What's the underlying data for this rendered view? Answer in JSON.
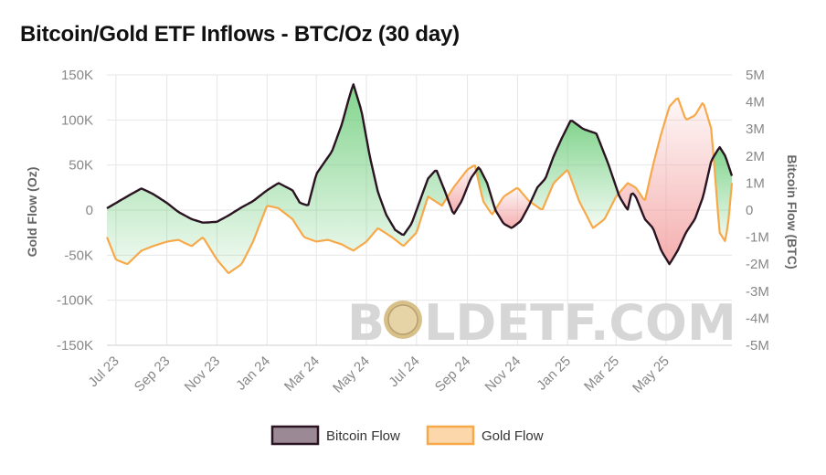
{
  "title": "Bitcoin/Gold ETF Inflows - BTC/Oz (30 day)",
  "watermark": {
    "left": "B",
    "right": "LDETF.COM"
  },
  "colors": {
    "bitcoin": "#2a1422",
    "bitcoin_fill": "#9b8a96",
    "gold": "#f7a94a",
    "gold_fill": "#fcd7ab",
    "pos_area": "#6ccc79",
    "neg_area": "#f29a9a",
    "grid": "#e6e6e6",
    "text": "#888888"
  },
  "chart_data": {
    "type": "line",
    "title": "Bitcoin/Gold ETF Inflows - BTC/Oz (30 day)",
    "x_start": "2023-06-20",
    "x_end": "2025-07-20",
    "x_ticks": [
      "Jul 23",
      "Sep 23",
      "Nov 23",
      "Jan 24",
      "Mar 24",
      "May 24",
      "Jul 24",
      "Sep 24",
      "Nov 24",
      "Jan 25",
      "Mar 25",
      "May 25"
    ],
    "x_tick_dates": [
      "2023-07-01",
      "2023-09-01",
      "2023-11-01",
      "2024-01-01",
      "2024-03-01",
      "2024-05-01",
      "2024-07-01",
      "2024-09-01",
      "2024-11-01",
      "2025-01-01",
      "2025-03-01",
      "2025-05-01"
    ],
    "y_left_label": "Gold Flow (Oz)",
    "y_left_lim": [
      -150000,
      150000
    ],
    "y_left_ticks": [
      "150K",
      "100K",
      "50K",
      "0",
      "-50K",
      "-100K",
      "-150K"
    ],
    "y_right_label": "Bitcoin Flow (BTC)",
    "y_right_lim": [
      -5000000,
      5000000
    ],
    "y_right_ticks": [
      "5M",
      "4M",
      "3M",
      "2M",
      "1M",
      "0",
      "-1M",
      "-2M",
      "-3M",
      "-4M",
      "-5M"
    ],
    "legend": [
      "Bitcoin Flow",
      "Gold Flow"
    ],
    "series": [
      {
        "name": "Bitcoin Flow",
        "axis": "left",
        "points": [
          [
            "2023-06-20",
            2000
          ],
          [
            "2023-07-05",
            10000
          ],
          [
            "2023-07-20",
            18000
          ],
          [
            "2023-08-01",
            24000
          ],
          [
            "2023-08-15",
            18000
          ],
          [
            "2023-09-01",
            8000
          ],
          [
            "2023-09-15",
            -2000
          ],
          [
            "2023-10-01",
            -10000
          ],
          [
            "2023-10-15",
            -14000
          ],
          [
            "2023-11-01",
            -13000
          ],
          [
            "2023-11-15",
            -6000
          ],
          [
            "2023-12-01",
            3000
          ],
          [
            "2023-12-15",
            10000
          ],
          [
            "2024-01-01",
            22000
          ],
          [
            "2024-01-15",
            30000
          ],
          [
            "2024-02-01",
            22000
          ],
          [
            "2024-02-10",
            8000
          ],
          [
            "2024-02-20",
            5000
          ],
          [
            "2024-03-01",
            40000
          ],
          [
            "2024-03-10",
            52000
          ],
          [
            "2024-03-20",
            65000
          ],
          [
            "2024-04-01",
            95000
          ],
          [
            "2024-04-10",
            125000
          ],
          [
            "2024-04-15",
            140000
          ],
          [
            "2024-04-25",
            110000
          ],
          [
            "2024-05-05",
            60000
          ],
          [
            "2024-05-15",
            20000
          ],
          [
            "2024-05-25",
            -5000
          ],
          [
            "2024-06-05",
            -22000
          ],
          [
            "2024-06-15",
            -28000
          ],
          [
            "2024-06-25",
            -15000
          ],
          [
            "2024-07-05",
            10000
          ],
          [
            "2024-07-15",
            35000
          ],
          [
            "2024-07-25",
            45000
          ],
          [
            "2024-08-05",
            20000
          ],
          [
            "2024-08-15",
            -5000
          ],
          [
            "2024-08-25",
            10000
          ],
          [
            "2024-09-05",
            35000
          ],
          [
            "2024-09-15",
            48000
          ],
          [
            "2024-09-25",
            30000
          ],
          [
            "2024-10-05",
            0
          ],
          [
            "2024-10-15",
            -15000
          ],
          [
            "2024-10-25",
            -20000
          ],
          [
            "2024-11-05",
            -12000
          ],
          [
            "2024-11-15",
            5000
          ],
          [
            "2024-11-25",
            25000
          ],
          [
            "2024-12-05",
            35000
          ],
          [
            "2024-12-15",
            60000
          ],
          [
            "2024-12-25",
            80000
          ],
          [
            "2025-01-05",
            100000
          ],
          [
            "2025-01-20",
            90000
          ],
          [
            "2025-02-05",
            85000
          ],
          [
            "2025-02-20",
            50000
          ],
          [
            "2025-03-05",
            15000
          ],
          [
            "2025-03-15",
            0
          ],
          [
            "2025-03-20",
            20000
          ],
          [
            "2025-03-25",
            15000
          ],
          [
            "2025-04-05",
            -10000
          ],
          [
            "2025-04-15",
            -20000
          ],
          [
            "2025-04-25",
            -45000
          ],
          [
            "2025-05-05",
            -60000
          ],
          [
            "2025-05-15",
            -45000
          ],
          [
            "2025-05-25",
            -25000
          ],
          [
            "2025-06-05",
            -10000
          ],
          [
            "2025-06-15",
            15000
          ],
          [
            "2025-06-25",
            55000
          ],
          [
            "2025-07-05",
            70000
          ],
          [
            "2025-07-12",
            60000
          ],
          [
            "2025-07-20",
            38000
          ]
        ]
      },
      {
        "name": "Gold Flow",
        "axis": "left",
        "points": [
          [
            "2023-06-20",
            -30000
          ],
          [
            "2023-07-01",
            -55000
          ],
          [
            "2023-07-15",
            -60000
          ],
          [
            "2023-08-01",
            -45000
          ],
          [
            "2023-08-15",
            -40000
          ],
          [
            "2023-09-01",
            -35000
          ],
          [
            "2023-09-15",
            -33000
          ],
          [
            "2023-10-01",
            -40000
          ],
          [
            "2023-10-15",
            -30000
          ],
          [
            "2023-11-01",
            -55000
          ],
          [
            "2023-11-15",
            -70000
          ],
          [
            "2023-12-01",
            -60000
          ],
          [
            "2023-12-15",
            -35000
          ],
          [
            "2024-01-01",
            5000
          ],
          [
            "2024-01-15",
            2000
          ],
          [
            "2024-02-01",
            -10000
          ],
          [
            "2024-02-15",
            -30000
          ],
          [
            "2024-03-01",
            -35000
          ],
          [
            "2024-03-15",
            -33000
          ],
          [
            "2024-04-01",
            -38000
          ],
          [
            "2024-04-15",
            -45000
          ],
          [
            "2024-05-01",
            -35000
          ],
          [
            "2024-05-15",
            -20000
          ],
          [
            "2024-06-01",
            -30000
          ],
          [
            "2024-06-15",
            -40000
          ],
          [
            "2024-07-01",
            -25000
          ],
          [
            "2024-07-15",
            15000
          ],
          [
            "2024-08-01",
            5000
          ],
          [
            "2024-08-15",
            25000
          ],
          [
            "2024-09-01",
            45000
          ],
          [
            "2024-09-10",
            50000
          ],
          [
            "2024-09-20",
            10000
          ],
          [
            "2024-10-01",
            -5000
          ],
          [
            "2024-10-15",
            15000
          ],
          [
            "2024-11-01",
            25000
          ],
          [
            "2024-11-15",
            10000
          ],
          [
            "2024-12-01",
            0
          ],
          [
            "2024-12-15",
            30000
          ],
          [
            "2025-01-01",
            45000
          ],
          [
            "2025-01-15",
            10000
          ],
          [
            "2025-02-01",
            -20000
          ],
          [
            "2025-02-15",
            -10000
          ],
          [
            "2025-03-01",
            15000
          ],
          [
            "2025-03-15",
            30000
          ],
          [
            "2025-03-25",
            25000
          ],
          [
            "2025-04-05",
            10000
          ],
          [
            "2025-04-15",
            50000
          ],
          [
            "2025-04-25",
            85000
          ],
          [
            "2025-05-05",
            115000
          ],
          [
            "2025-05-15",
            125000
          ],
          [
            "2025-05-25",
            100000
          ],
          [
            "2025-06-05",
            105000
          ],
          [
            "2025-06-15",
            120000
          ],
          [
            "2025-06-25",
            90000
          ],
          [
            "2025-07-05",
            -25000
          ],
          [
            "2025-07-12",
            -35000
          ],
          [
            "2025-07-16",
            -10000
          ],
          [
            "2025-07-20",
            30000
          ]
        ]
      }
    ]
  }
}
